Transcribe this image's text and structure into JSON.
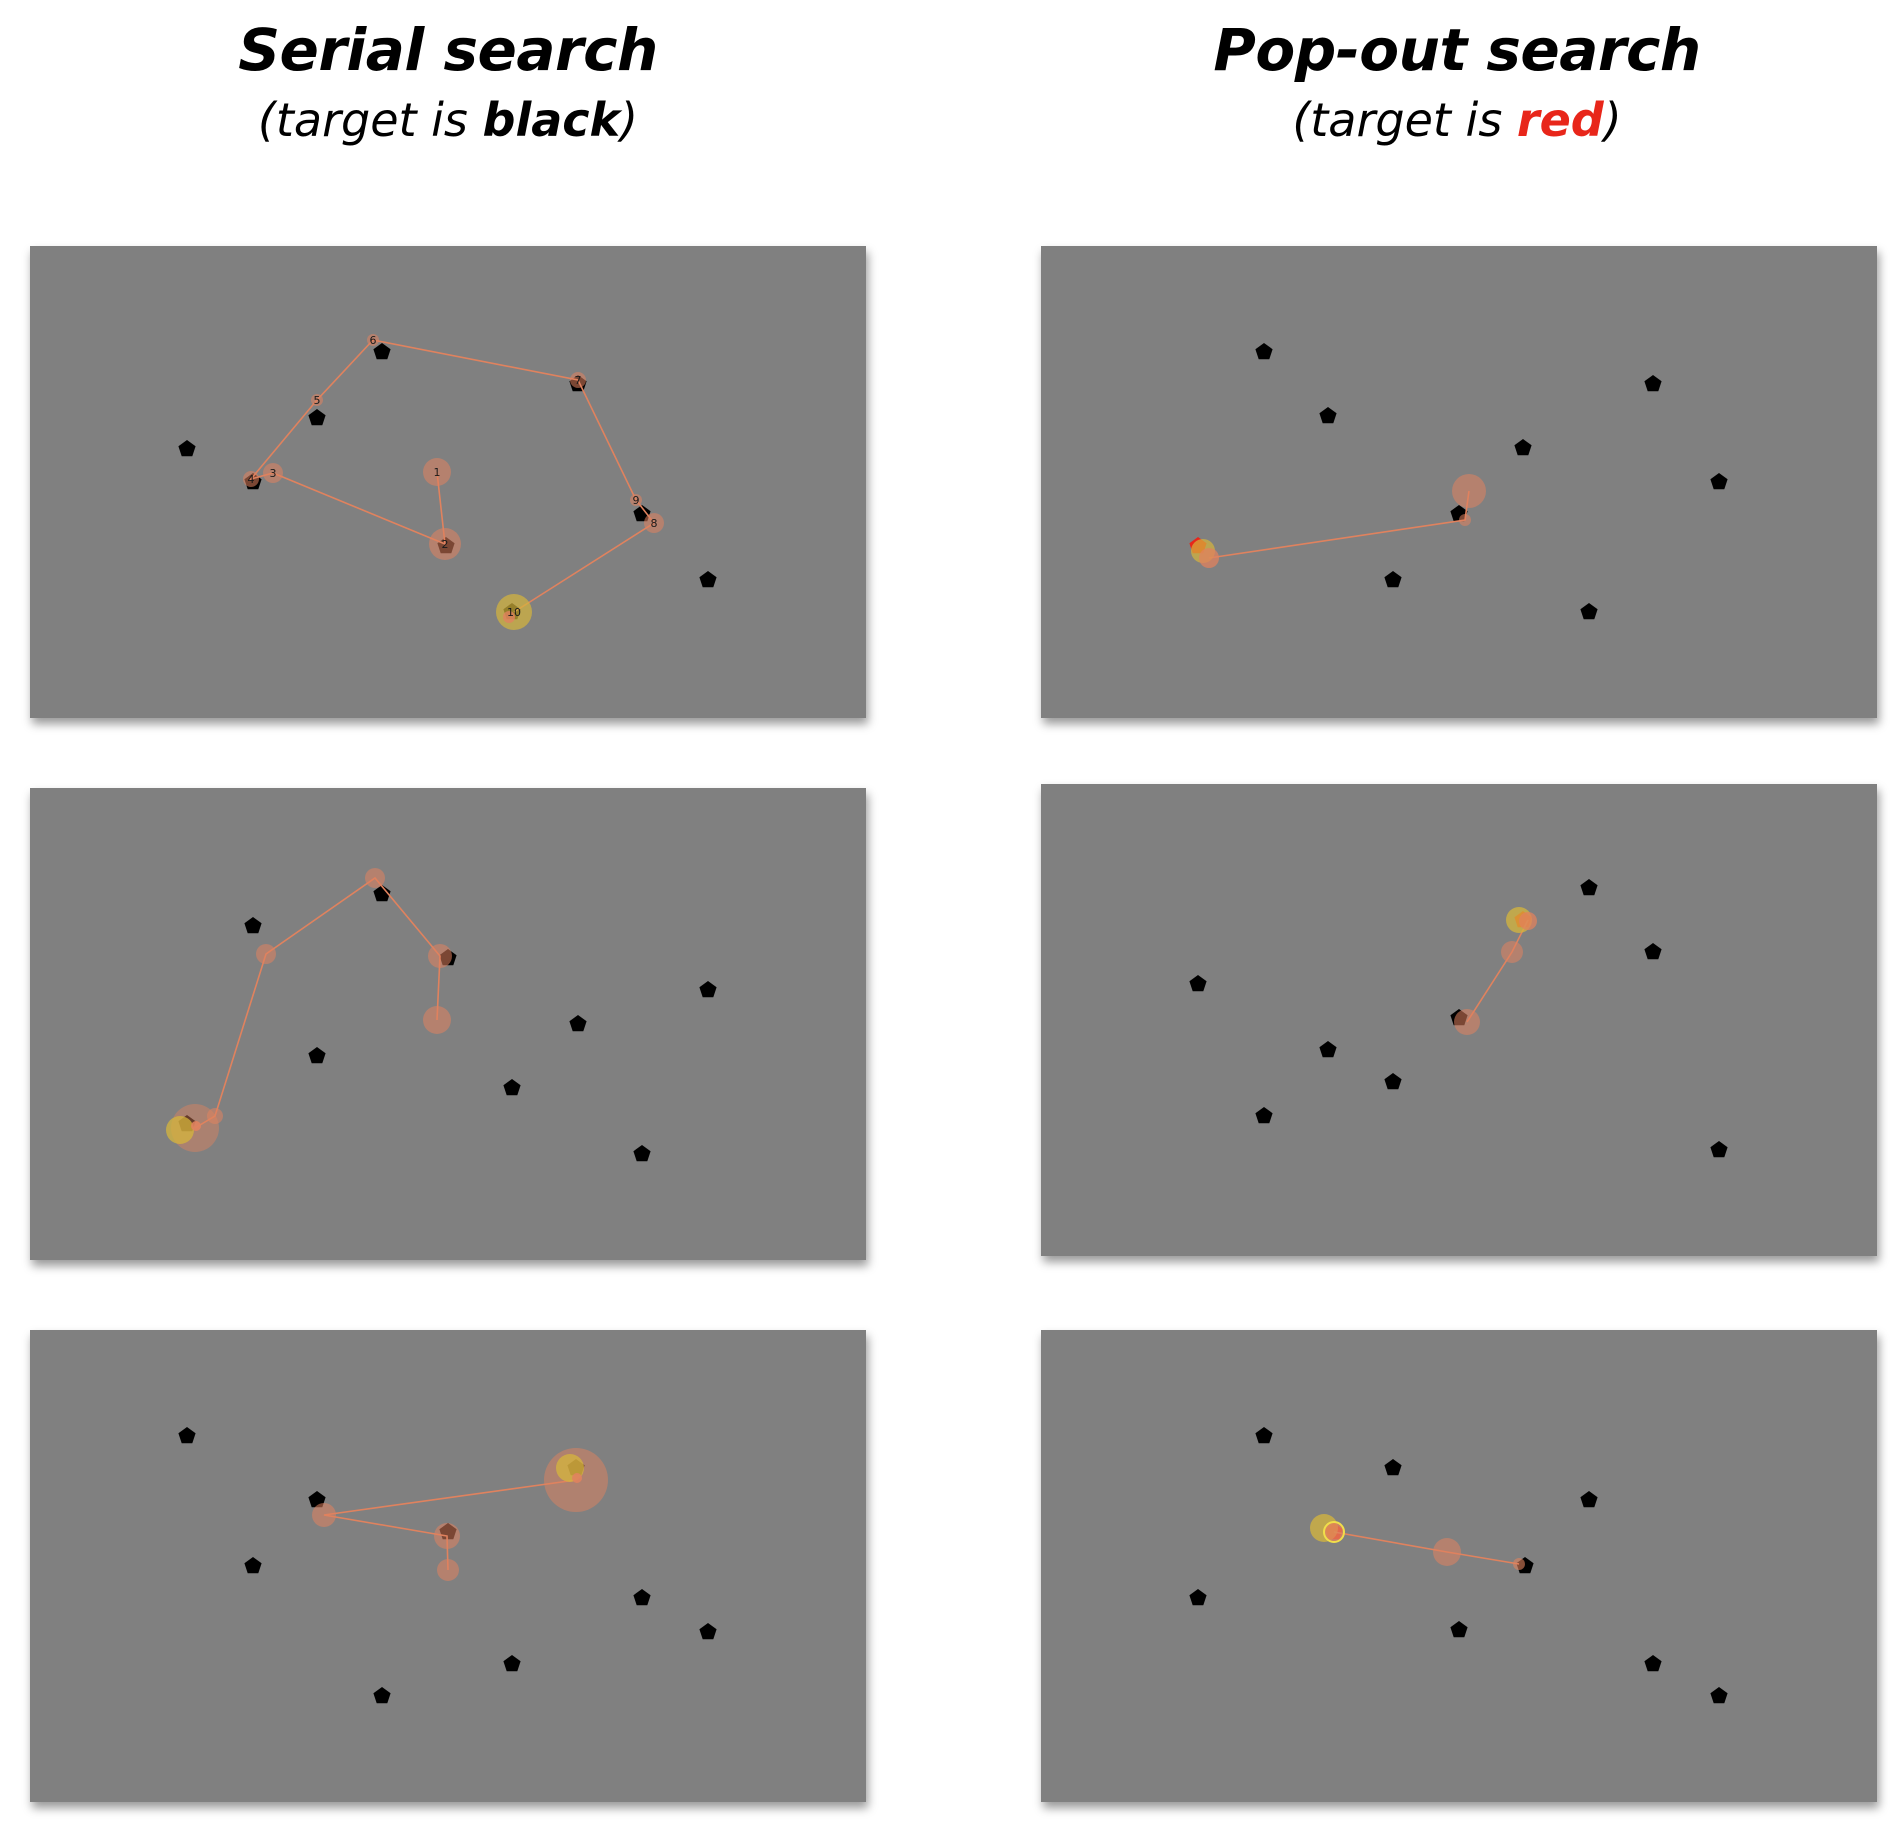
{
  "columns": [
    {
      "title": "Serial search",
      "subtitle_open": "(target is ",
      "subtitle_emph": "black",
      "subtitle_close": ")",
      "emph_color": "#000000"
    },
    {
      "title": "Pop-out search",
      "subtitle_open": "(target is ",
      "subtitle_emph": "red",
      "subtitle_close": ")",
      "emph_color": "#e8261a"
    }
  ],
  "colors": {
    "panel_background": "#808080",
    "pentagon": "#000000",
    "scanpath": "#e0825e",
    "first_fixation": "#d6b53c",
    "target_red": "#e8261a"
  }
}
